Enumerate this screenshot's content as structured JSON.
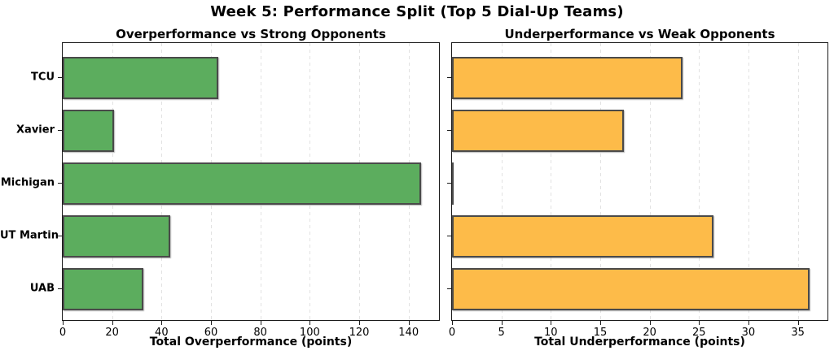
{
  "figure": {
    "title": "Week 5: Performance Split (Top 5 Dial-Up Teams)",
    "background": "#ffffff"
  },
  "chart_data": [
    {
      "type": "bar",
      "orientation": "horizontal",
      "title": "Overperformance vs Strong Opponents",
      "xlabel": "Total Overperformance (points)",
      "ylabel": "",
      "categories": [
        "TCU",
        "Xavier",
        "Michigan",
        "UT Martin",
        "UAB"
      ],
      "values": [
        63.0,
        20.8,
        145.0,
        43.4,
        32.5
      ],
      "xlim": [
        0,
        152.3
      ],
      "xticks": [
        0,
        20,
        40,
        60,
        80,
        100,
        120,
        140
      ],
      "grid": "vertical-dashed",
      "legend": "none",
      "bar_color": "#5cad5e",
      "bar_edge_color": "#4a4a4a",
      "show_category_labels": true
    },
    {
      "type": "bar",
      "orientation": "horizontal",
      "title": "Underperformance vs Weak Opponents",
      "xlabel": "Total Underperformance (points)",
      "ylabel": "",
      "categories": [
        "TCU",
        "Xavier",
        "Michigan",
        "UT Martin",
        "UAB"
      ],
      "values": [
        23.3,
        17.4,
        0.0,
        26.5,
        36.2
      ],
      "xlim": [
        0,
        38.0
      ],
      "xticks": [
        0,
        5,
        10,
        15,
        20,
        25,
        30,
        35
      ],
      "grid": "vertical-dashed",
      "legend": "none",
      "bar_color": "#fdbb49",
      "bar_edge_color": "#4a4a4a",
      "show_category_labels": false
    }
  ]
}
